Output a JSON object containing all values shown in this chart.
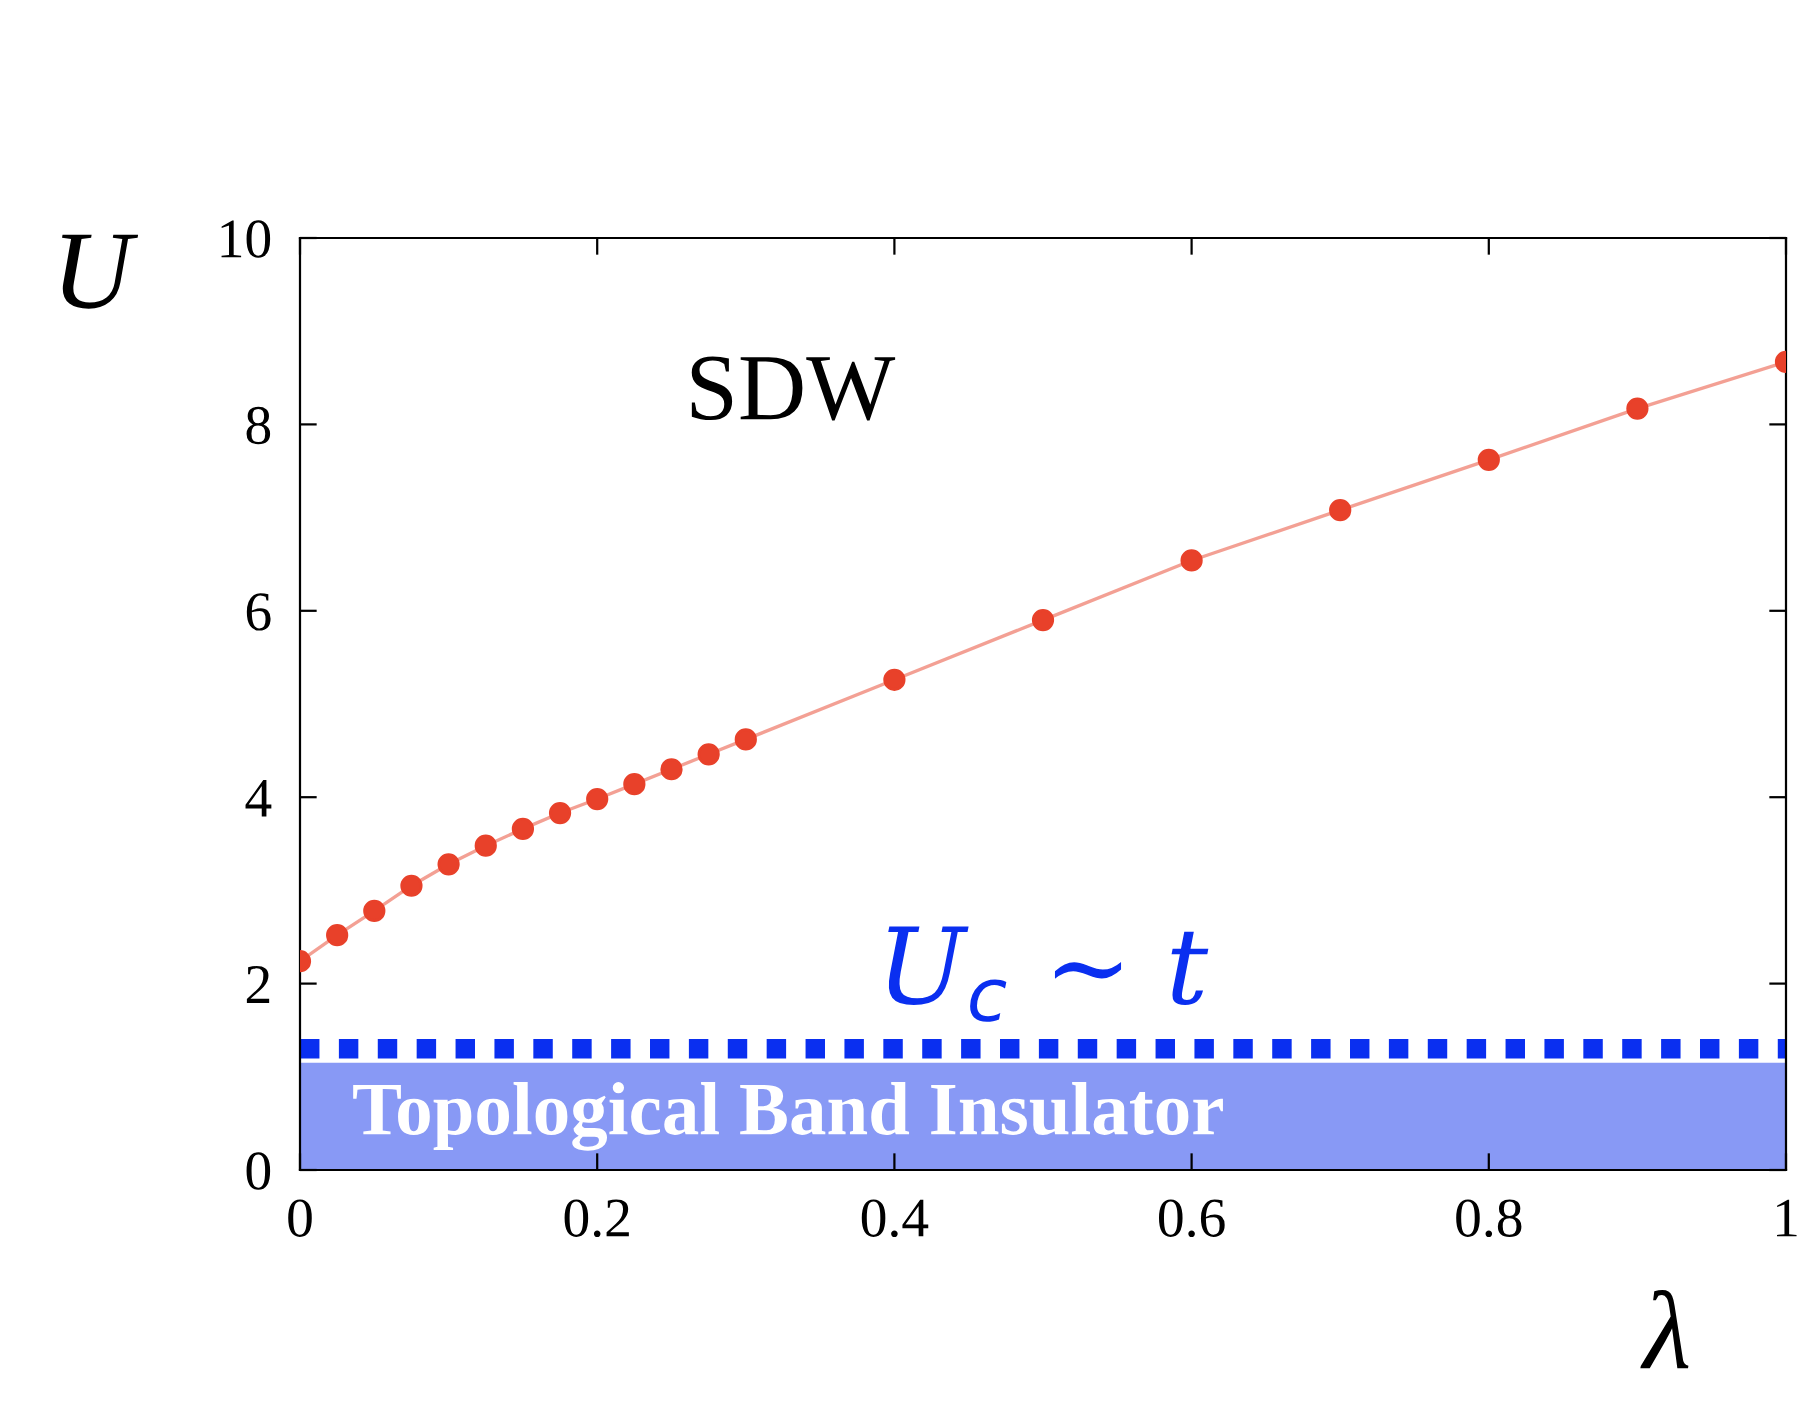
{
  "chart_data": {
    "type": "line",
    "xlabel": "λ",
    "ylabel": "U",
    "x": [
      0,
      0.025,
      0.05,
      0.075,
      0.1,
      0.125,
      0.15,
      0.175,
      0.2,
      0.225,
      0.25,
      0.275,
      0.3,
      0.4,
      0.5,
      0.6,
      0.7,
      0.8,
      0.9,
      1.0
    ],
    "series": [
      {
        "color": "#e8412a",
        "values": [
          2.24,
          2.52,
          2.78,
          3.05,
          3.28,
          3.48,
          3.66,
          3.83,
          3.98,
          4.14,
          4.3,
          4.46,
          4.62,
          5.26,
          5.9,
          6.54,
          7.08,
          7.62,
          8.17,
          8.67
        ]
      }
    ],
    "marker": "circle",
    "line_style": "solid",
    "xlim": [
      0,
      1
    ],
    "ylim": [
      0,
      10
    ],
    "xticks": [
      0,
      0.2,
      0.4,
      0.6,
      0.8,
      1
    ],
    "yticks": [
      0,
      2,
      4,
      6,
      8,
      10
    ],
    "ref_lines": [
      {
        "axis": "y",
        "value": 1.3,
        "label": "U$_{c}$ ∼ t",
        "color": "#0a2ff0",
        "line_style": "dotted"
      }
    ],
    "bands": [
      {
        "axis": "y",
        "from": 0,
        "to": 1.15,
        "label": "Topological Band Insulator",
        "color": "#8899f5"
      }
    ],
    "annotations": [
      "SDW"
    ],
    "grid": false,
    "legend": false
  }
}
